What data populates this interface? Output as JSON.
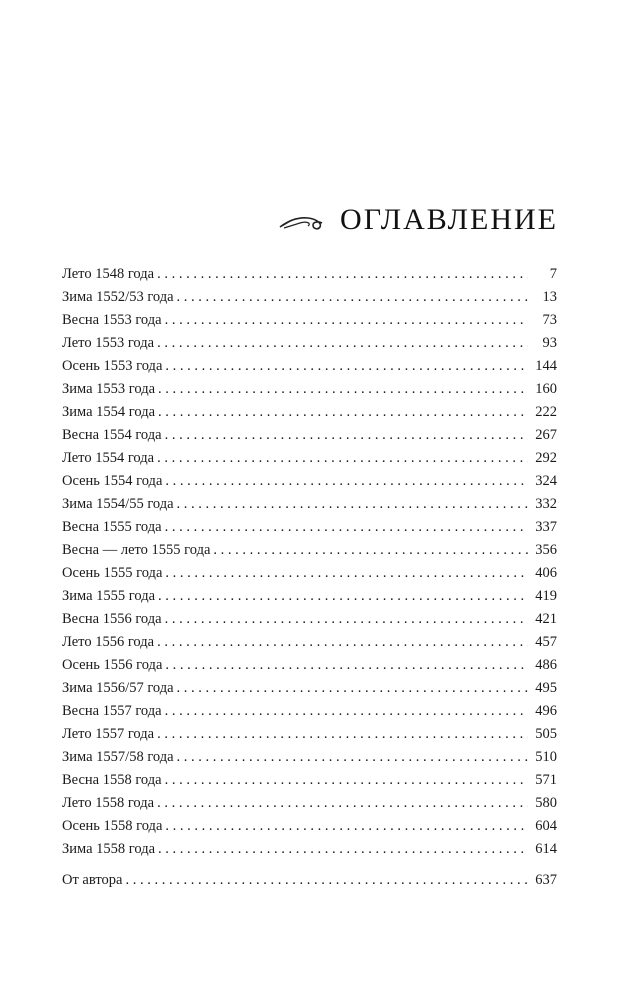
{
  "title": "ОГЛАВЛЕНИЕ",
  "title_ornament": "flourish-ornament",
  "entries": [
    {
      "label": "Лето 1548 года",
      "page": "7"
    },
    {
      "label": "Зима 1552/53 года",
      "page": "13"
    },
    {
      "label": "Весна 1553 года",
      "page": "73"
    },
    {
      "label": "Лето 1553 года",
      "page": "93"
    },
    {
      "label": "Осень 1553 года",
      "page": "144"
    },
    {
      "label": "Зима 1553 года",
      "page": "160"
    },
    {
      "label": "Зима 1554 года",
      "page": "222"
    },
    {
      "label": "Весна 1554 года",
      "page": "267"
    },
    {
      "label": "Лето 1554 года",
      "page": "292"
    },
    {
      "label": "Осень 1554 года",
      "page": "324"
    },
    {
      "label": "Зима 1554/55 года",
      "page": "332"
    },
    {
      "label": "Весна 1555 года",
      "page": "337"
    },
    {
      "label": "Весна — лето 1555 года",
      "page": "356"
    },
    {
      "label": "Осень 1555 года",
      "page": "406"
    },
    {
      "label": "Зима 1555 года",
      "page": "419"
    },
    {
      "label": "Весна 1556 года",
      "page": "421"
    },
    {
      "label": "Лето 1556 года",
      "page": "457"
    },
    {
      "label": "Осень 1556 года",
      "page": "486"
    },
    {
      "label": "Зима 1556/57 года",
      "page": "495"
    },
    {
      "label": "Весна 1557 года",
      "page": "496"
    },
    {
      "label": "Лето 1557 года",
      "page": "505"
    },
    {
      "label": "Зима 1557/58 года",
      "page": "510"
    },
    {
      "label": "Весна 1558 года",
      "page": "571"
    },
    {
      "label": "Лето 1558 года",
      "page": "580"
    },
    {
      "label": "Осень 1558 года",
      "page": "604"
    },
    {
      "label": "Зима 1558 года",
      "page": "614"
    }
  ],
  "afterword": {
    "label": "От автора",
    "page": "637"
  }
}
